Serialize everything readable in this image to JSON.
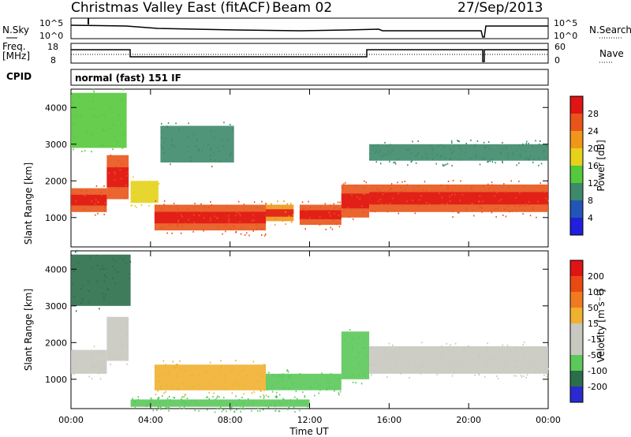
{
  "header": {
    "radar": "Christmas Valley East (fitACF)",
    "beam": "Beam 02",
    "date": "27/Sep/2013"
  },
  "status": {
    "nsky_label": "N.Sky",
    "nsky_ticks": [
      "10^5",
      "10^0"
    ],
    "nsearch_label": "N.Search",
    "nsearch_ticks": [
      "10^5",
      "10^0"
    ],
    "freq_label_1": "Freq.",
    "freq_label_2": "[MHz]",
    "freq_ticks": [
      "18",
      "8"
    ],
    "nave_label": "Nave",
    "nave_ticks": [
      "60",
      "0"
    ],
    "cpid_label": "CPID",
    "cpid_value": "normal (fast) 151 IF"
  },
  "axes": {
    "ylabel": "Slant Range [km]",
    "xlabel": "Time UT",
    "ytick_labels": [
      "1000",
      "2000",
      "3000",
      "4000"
    ],
    "xtick_labels": [
      "00:00",
      "04:00",
      "08:00",
      "12:00",
      "16:00",
      "20:00",
      "00:00"
    ]
  },
  "colorbars": {
    "power": {
      "label": "Power [dB]",
      "ticks": [
        "28",
        "24",
        "20",
        "16",
        "12",
        "8",
        "4"
      ],
      "colors": [
        "#1f1fdc",
        "#2255b5",
        "#3d8a6a",
        "#55c83c",
        "#e6d21a",
        "#f0961a",
        "#e8541a",
        "#e01414"
      ]
    },
    "velocity": {
      "label": "Velocity [m s⁻¹]",
      "ticks": [
        "200",
        "100",
        "50",
        "15",
        "-15",
        "-50",
        "-100",
        "-200"
      ],
      "colors": [
        "#2a2ad0",
        "#2a6e4a",
        "#5ac85a",
        "#c8c8c0",
        "#c8c8c0",
        "#f0b030",
        "#f07a20",
        "#e84a14",
        "#e01414"
      ]
    }
  },
  "chart_data": [
    {
      "type": "heatmap",
      "title": "Power",
      "xlabel": "Time UT",
      "ylabel": "Slant Range [km]",
      "xlim": [
        0,
        24
      ],
      "ylim": [
        200,
        4500
      ],
      "colorbar_label": "Power [dB]",
      "bands": [
        {
          "t0": 0.0,
          "t1": 1.8,
          "r0": 1150,
          "r1": 1800,
          "p": 24
        },
        {
          "t0": 1.8,
          "t1": 2.9,
          "r0": 1500,
          "r1": 2700,
          "p": 24
        },
        {
          "t0": 3.0,
          "t1": 4.4,
          "r0": 1400,
          "r1": 2000,
          "p": 16
        },
        {
          "t0": 4.2,
          "t1": 9.8,
          "r0": 650,
          "r1": 1350,
          "p": 24
        },
        {
          "t0": 9.8,
          "t1": 11.2,
          "r0": 900,
          "r1": 1350,
          "p": 20
        },
        {
          "t0": 11.5,
          "t1": 13.6,
          "r0": 800,
          "r1": 1350,
          "p": 24
        },
        {
          "t0": 13.6,
          "t1": 15.0,
          "r0": 1000,
          "r1": 1900,
          "p": 26
        },
        {
          "t0": 15.0,
          "t1": 24.0,
          "r0": 1150,
          "r1": 1900,
          "p": 24
        },
        {
          "t0": 0.0,
          "t1": 2.8,
          "r0": 2900,
          "r1": 4400,
          "p": 14
        },
        {
          "t0": 4.5,
          "t1": 8.2,
          "r0": 2500,
          "r1": 3500,
          "p": 10
        },
        {
          "t0": 15.0,
          "t1": 24.0,
          "r0": 2550,
          "r1": 3000,
          "p": 8
        }
      ]
    },
    {
      "type": "heatmap",
      "title": "Velocity",
      "xlabel": "Time UT",
      "ylabel": "Slant Range [km]",
      "xlim": [
        0,
        24
      ],
      "ylim": [
        200,
        4500
      ],
      "colorbar_label": "Velocity [m s⁻¹]",
      "bands": [
        {
          "t0": 0.0,
          "t1": 1.8,
          "r0": 1150,
          "r1": 1800,
          "v": 0
        },
        {
          "t0": 1.8,
          "t1": 2.9,
          "r0": 1500,
          "r1": 2700,
          "v": 0
        },
        {
          "t0": 4.2,
          "t1": 9.8,
          "r0": 700,
          "r1": 1400,
          "v": -30
        },
        {
          "t0": 9.8,
          "t1": 13.6,
          "r0": 700,
          "r1": 1150,
          "v": 40
        },
        {
          "t0": 13.6,
          "t1": 15.0,
          "r0": 1000,
          "r1": 2300,
          "v": 45
        },
        {
          "t0": 15.0,
          "t1": 24.0,
          "r0": 1150,
          "r1": 1900,
          "v": 0
        },
        {
          "t0": 3.0,
          "t1": 12.0,
          "r0": 250,
          "r1": 450,
          "v": 40
        },
        {
          "t0": 0.0,
          "t1": 3.0,
          "r0": 3000,
          "r1": 4400,
          "v": 120
        }
      ]
    }
  ]
}
